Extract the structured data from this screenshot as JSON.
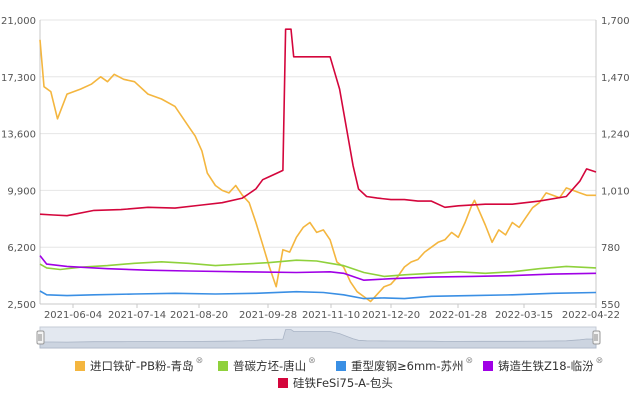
{
  "chart_data": {
    "type": "line",
    "x_ticks": [
      "2021-06-04",
      "2021-07-14",
      "2021-08-20",
      "2021-09-28",
      "2021-11-10",
      "2021-12-20",
      "2022-01-28",
      "2022-03-15",
      "2022-04-22"
    ],
    "y_left_ticks": [
      "2,500",
      "6,200",
      "9,900",
      "13,600",
      "17,300",
      "21,000"
    ],
    "y_right_ticks": [
      "550",
      "780",
      "1,010",
      "1,240",
      "1,470",
      "1,700"
    ],
    "y_left_range": [
      2500,
      21000
    ],
    "y_right_range": [
      550,
      1700
    ],
    "grid": "horizontal",
    "legend_position": "bottom",
    "series": [
      {
        "name": "进口铁矿-PB粉-青岛",
        "axis": "right",
        "color": "#f4b63f",
        "close_icon": "⊗",
        "values": [
          [
            0,
            1620
          ],
          [
            3,
            1430
          ],
          [
            8,
            1410
          ],
          [
            13,
            1300
          ],
          [
            20,
            1400
          ],
          [
            30,
            1420
          ],
          [
            38,
            1440
          ],
          [
            45,
            1470
          ],
          [
            50,
            1450
          ],
          [
            55,
            1480
          ],
          [
            62,
            1460
          ],
          [
            70,
            1450
          ],
          [
            80,
            1400
          ],
          [
            90,
            1380
          ],
          [
            100,
            1350
          ],
          [
            110,
            1270
          ],
          [
            115,
            1230
          ],
          [
            120,
            1170
          ],
          [
            124,
            1080
          ],
          [
            130,
            1030
          ],
          [
            135,
            1010
          ],
          [
            140,
            1000
          ],
          [
            145,
            1030
          ],
          [
            150,
            990
          ],
          [
            155,
            960
          ],
          [
            160,
            880
          ],
          [
            165,
            790
          ],
          [
            170,
            700
          ],
          [
            175,
            620
          ],
          [
            180,
            770
          ],
          [
            185,
            760
          ],
          [
            190,
            820
          ],
          [
            195,
            860
          ],
          [
            200,
            880
          ],
          [
            205,
            840
          ],
          [
            210,
            850
          ],
          [
            215,
            810
          ],
          [
            220,
            720
          ],
          [
            225,
            700
          ],
          [
            230,
            640
          ],
          [
            235,
            600
          ],
          [
            240,
            580
          ],
          [
            245,
            560
          ],
          [
            250,
            590
          ],
          [
            255,
            620
          ],
          [
            260,
            630
          ],
          [
            265,
            660
          ],
          [
            270,
            700
          ],
          [
            275,
            720
          ],
          [
            280,
            730
          ],
          [
            285,
            760
          ],
          [
            290,
            780
          ],
          [
            295,
            800
          ],
          [
            300,
            810
          ],
          [
            305,
            840
          ],
          [
            310,
            820
          ],
          [
            315,
            880
          ],
          [
            320,
            950
          ],
          [
            322,
            970
          ],
          [
            326,
            920
          ],
          [
            330,
            870
          ],
          [
            335,
            800
          ],
          [
            340,
            850
          ],
          [
            345,
            830
          ],
          [
            350,
            880
          ],
          [
            355,
            860
          ],
          [
            360,
            900
          ],
          [
            365,
            940
          ],
          [
            370,
            960
          ],
          [
            375,
            1000
          ],
          [
            380,
            990
          ],
          [
            385,
            980
          ],
          [
            390,
            1020
          ],
          [
            395,
            1010
          ],
          [
            400,
            1000
          ],
          [
            405,
            990
          ],
          [
            412,
            990
          ]
        ]
      },
      {
        "name": "普碳方坯-唐山",
        "axis": "left",
        "color": "#8fd13c",
        "close_icon": "⊗",
        "values": [
          [
            0,
            5100
          ],
          [
            5,
            4850
          ],
          [
            15,
            4750
          ],
          [
            30,
            4900
          ],
          [
            50,
            5000
          ],
          [
            70,
            5150
          ],
          [
            90,
            5250
          ],
          [
            110,
            5150
          ],
          [
            130,
            5000
          ],
          [
            150,
            5100
          ],
          [
            170,
            5200
          ],
          [
            190,
            5350
          ],
          [
            205,
            5300
          ],
          [
            215,
            5150
          ],
          [
            225,
            5000
          ],
          [
            240,
            4550
          ],
          [
            255,
            4300
          ],
          [
            270,
            4400
          ],
          [
            290,
            4500
          ],
          [
            310,
            4600
          ],
          [
            330,
            4500
          ],
          [
            350,
            4600
          ],
          [
            370,
            4800
          ],
          [
            390,
            4950
          ],
          [
            412,
            4850
          ]
        ]
      },
      {
        "name": "重型废钢≥6mm-苏州",
        "axis": "left",
        "color": "#3a8fe4",
        "close_icon": "⊗",
        "values": [
          [
            0,
            3350
          ],
          [
            5,
            3100
          ],
          [
            20,
            3050
          ],
          [
            40,
            3100
          ],
          [
            70,
            3150
          ],
          [
            100,
            3200
          ],
          [
            130,
            3150
          ],
          [
            160,
            3200
          ],
          [
            190,
            3300
          ],
          [
            210,
            3250
          ],
          [
            225,
            3100
          ],
          [
            240,
            2850
          ],
          [
            255,
            2900
          ],
          [
            270,
            2850
          ],
          [
            290,
            3000
          ],
          [
            320,
            3050
          ],
          [
            350,
            3100
          ],
          [
            380,
            3200
          ],
          [
            412,
            3250
          ]
        ]
      },
      {
        "name": "铸造生铁Z18-临汾",
        "axis": "left",
        "color": "#a000e6",
        "close_icon": "⊗",
        "values": [
          [
            0,
            5650
          ],
          [
            5,
            5100
          ],
          [
            20,
            4950
          ],
          [
            50,
            4800
          ],
          [
            80,
            4700
          ],
          [
            110,
            4650
          ],
          [
            150,
            4600
          ],
          [
            190,
            4550
          ],
          [
            215,
            4600
          ],
          [
            225,
            4500
          ],
          [
            240,
            4050
          ],
          [
            260,
            4150
          ],
          [
            290,
            4250
          ],
          [
            320,
            4300
          ],
          [
            350,
            4350
          ],
          [
            380,
            4450
          ],
          [
            412,
            4500
          ]
        ]
      },
      {
        "name": "硅铁FeSi75-A-包头",
        "axis": "left",
        "color": "#d4063c",
        "close_icon": "",
        "values": [
          [
            0,
            8350
          ],
          [
            10,
            8300
          ],
          [
            20,
            8250
          ],
          [
            40,
            8600
          ],
          [
            60,
            8650
          ],
          [
            80,
            8800
          ],
          [
            100,
            8750
          ],
          [
            120,
            8950
          ],
          [
            135,
            9100
          ],
          [
            150,
            9400
          ],
          [
            155,
            9700
          ],
          [
            160,
            10000
          ],
          [
            165,
            10600
          ],
          [
            170,
            10800
          ],
          [
            175,
            11000
          ],
          [
            180,
            11200
          ],
          [
            182,
            20400
          ],
          [
            186,
            20400
          ],
          [
            188,
            18600
          ],
          [
            200,
            18600
          ],
          [
            215,
            18600
          ],
          [
            222,
            16500
          ],
          [
            228,
            13500
          ],
          [
            232,
            11500
          ],
          [
            236,
            10000
          ],
          [
            242,
            9500
          ],
          [
            250,
            9400
          ],
          [
            260,
            9300
          ],
          [
            270,
            9300
          ],
          [
            280,
            9200
          ],
          [
            290,
            9200
          ],
          [
            300,
            8800
          ],
          [
            310,
            8900
          ],
          [
            330,
            9000
          ],
          [
            350,
            9000
          ],
          [
            370,
            9200
          ],
          [
            390,
            9500
          ],
          [
            400,
            10500
          ],
          [
            405,
            11300
          ],
          [
            412,
            11100
          ]
        ]
      }
    ]
  }
}
